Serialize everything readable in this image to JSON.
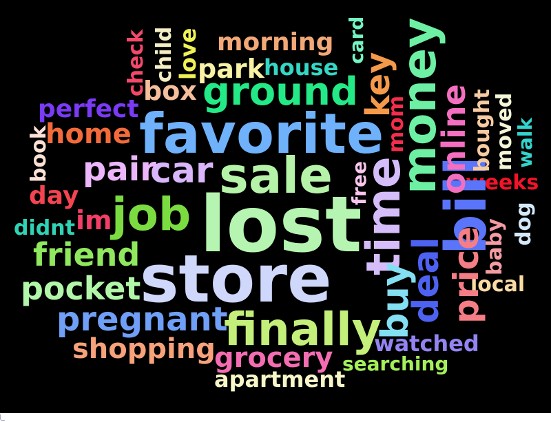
{
  "background": "#000000",
  "words": [
    {
      "text": "lost",
      "color": "#b6f5b1"
    },
    {
      "text": "store",
      "color": "#cfd7fb"
    },
    {
      "text": "favorite",
      "color": "#6fb2fb"
    },
    {
      "text": "sale",
      "color": "#b5f3a9"
    },
    {
      "text": "job",
      "color": "#7bdc41"
    },
    {
      "text": "finally",
      "color": "#c4ef7a"
    },
    {
      "text": "money",
      "color": "#6df0a4"
    },
    {
      "text": "ground",
      "color": "#23ea86"
    },
    {
      "text": "time",
      "color": "#d5bdfa"
    },
    {
      "text": "bill",
      "color": "#5a75fa"
    },
    {
      "text": "car",
      "color": "#d9b6fa"
    },
    {
      "text": "pair",
      "color": "#ecb6fb"
    },
    {
      "text": "pregnant",
      "color": "#6f9ff6"
    },
    {
      "text": "pocket",
      "color": "#b2f7a9"
    },
    {
      "text": "friend",
      "color": "#8fe85e"
    },
    {
      "text": "home",
      "color": "#f36b3a"
    },
    {
      "text": "shopping",
      "color": "#f7a27b"
    },
    {
      "text": "grocery",
      "color": "#f46db2"
    },
    {
      "text": "deal",
      "color": "#4e62f2"
    },
    {
      "text": "buy",
      "color": "#83dff2"
    },
    {
      "text": "price",
      "color": "#f57d86"
    },
    {
      "text": "online",
      "color": "#f56fc1"
    },
    {
      "text": "key",
      "color": "#f49a4a"
    },
    {
      "text": "morning",
      "color": "#f2a877"
    },
    {
      "text": "park",
      "color": "#f7f2a5"
    },
    {
      "text": "house",
      "color": "#35d6c4"
    },
    {
      "text": "box",
      "color": "#f5bf9c"
    },
    {
      "text": "perfect",
      "color": "#7a3af6"
    },
    {
      "text": "im",
      "color": "#f33e68"
    },
    {
      "text": "day",
      "color": "#f54451"
    },
    {
      "text": "didnt",
      "color": "#2fd3b6"
    },
    {
      "text": "book",
      "color": "#fbe1d6"
    },
    {
      "text": "check",
      "color": "#f4486a"
    },
    {
      "text": "child",
      "color": "#f4eec4"
    },
    {
      "text": "love",
      "color": "#eff257"
    },
    {
      "text": "card",
      "color": "#73f5c2"
    },
    {
      "text": "mom",
      "color": "#f32e4c"
    },
    {
      "text": "bought",
      "color": "#f7cba2"
    },
    {
      "text": "moved",
      "color": "#f3f5d6"
    },
    {
      "text": "walk",
      "color": "#33d4cd"
    },
    {
      "text": "weeks",
      "color": "#f5132a"
    },
    {
      "text": "free",
      "color": "#fac6f0"
    },
    {
      "text": "dog",
      "color": "#d3e9fa"
    },
    {
      "text": "baby",
      "color": "#f59ba3"
    },
    {
      "text": "local",
      "color": "#fbdba5"
    },
    {
      "text": "watched",
      "color": "#9384f2"
    },
    {
      "text": "searching",
      "color": "#a4f05a"
    },
    {
      "text": "apartment",
      "color": "#f7f6c8"
    }
  ]
}
